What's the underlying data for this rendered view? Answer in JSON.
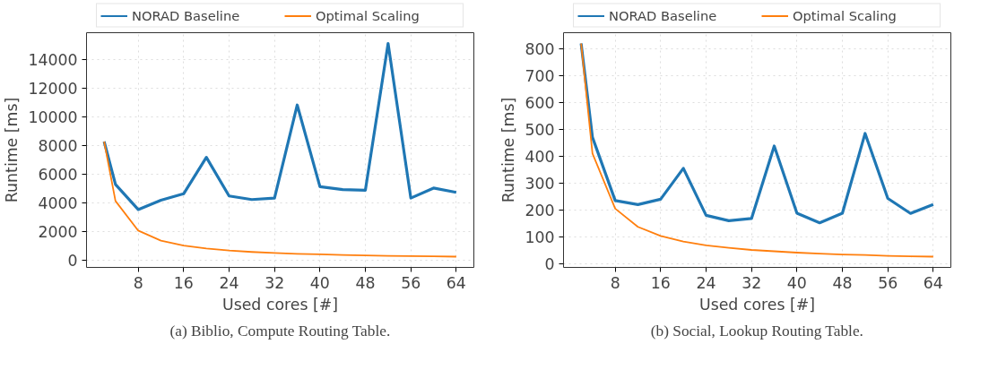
{
  "chart_data": [
    {
      "type": "line",
      "title": "(a) Biblio, Compute Routing Table.",
      "xlabel": "Used cores [#]",
      "ylabel": "Runtime [ms]",
      "x": [
        2,
        4,
        8,
        12,
        16,
        20,
        24,
        28,
        32,
        36,
        40,
        44,
        48,
        52,
        56,
        60,
        64
      ],
      "series": [
        {
          "name": "NORAD Baseline",
          "color": "#1f77b4",
          "values": [
            8300,
            5300,
            3550,
            4200,
            4650,
            7200,
            4500,
            4250,
            4350,
            10850,
            5150,
            4950,
            4900,
            15150,
            4350,
            5050,
            4750
          ]
        },
        {
          "name": "Optimal Scaling",
          "color": "#ff7f0e",
          "values": [
            8300,
            4150,
            2080,
            1380,
            1040,
            830,
            690,
            590,
            520,
            460,
            420,
            380,
            350,
            320,
            300,
            280,
            260
          ]
        }
      ],
      "xlim": [
        -1.1,
        67.1
      ],
      "ylim": [
        -490,
        15900
      ],
      "xticks": [
        8,
        16,
        24,
        32,
        40,
        48,
        56,
        64
      ],
      "yticks": [
        0,
        2000,
        4000,
        6000,
        8000,
        10000,
        12000,
        14000
      ],
      "grid": true,
      "legend": "top",
      "marker": "none",
      "line_style": "solid"
    },
    {
      "type": "line",
      "title": "(b) Social, Lookup Routing Table.",
      "xlabel": "Used cores [#]",
      "ylabel": "Runtime [ms]",
      "x": [
        2,
        4,
        8,
        12,
        16,
        20,
        24,
        28,
        32,
        36,
        40,
        44,
        48,
        52,
        56,
        60,
        64
      ],
      "series": [
        {
          "name": "NORAD Baseline",
          "color": "#1f77b4",
          "values": [
            820,
            470,
            235,
            220,
            240,
            355,
            180,
            160,
            168,
            438,
            188,
            152,
            188,
            485,
            243,
            187,
            220
          ]
        },
        {
          "name": "Optimal Scaling",
          "color": "#ff7f0e",
          "values": [
            820,
            410,
            205,
            137,
            103,
            82,
            68,
            59,
            51,
            46,
            41,
            37,
            34,
            32,
            29,
            27,
            26
          ]
        }
      ],
      "xlim": [
        -1.1,
        67.1
      ],
      "ylim": [
        -14,
        860
      ],
      "xticks": [
        8,
        16,
        24,
        32,
        40,
        48,
        56,
        64
      ],
      "yticks": [
        0,
        100,
        200,
        300,
        400,
        500,
        600,
        700,
        800
      ],
      "grid": true,
      "legend": "top",
      "marker": "none",
      "line_style": "solid"
    }
  ]
}
